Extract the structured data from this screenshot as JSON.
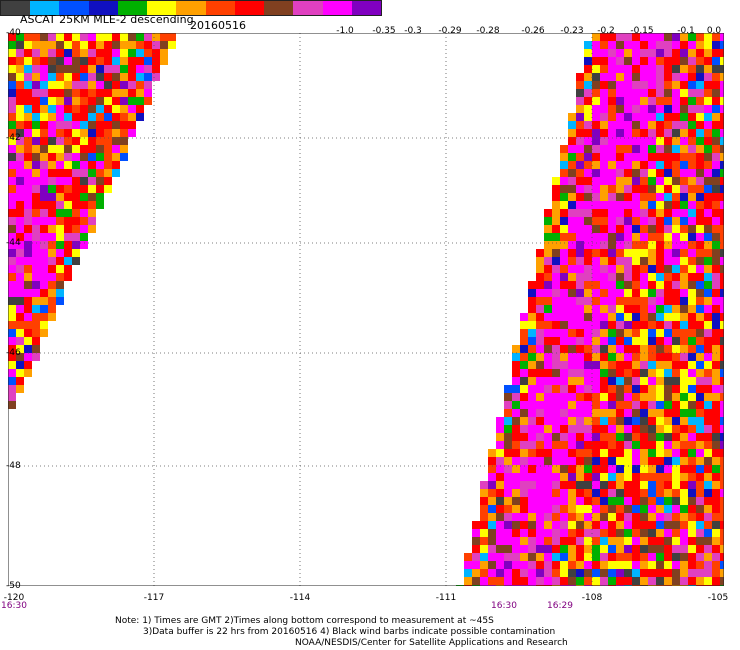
{
  "header": {
    "title": "ASCAT 25KM MLE-2 descending",
    "date": "20160516"
  },
  "legend": {
    "colors": [
      "#404040",
      "#00b4ff",
      "#0050ff",
      "#1010c0",
      "#00b000",
      "#ffff00",
      "#ffa000",
      "#ff4000",
      "#ff0000",
      "#804020",
      "#e040c0",
      "#ff00ff",
      "#8000c0"
    ],
    "labels": [
      "-1.0",
      "-0.35",
      "-0.3",
      "-0.29",
      "-0.28",
      "-0.26",
      "-0.23",
      "-0.2",
      "-0.15",
      "-0.1",
      "0.0"
    ]
  },
  "map": {
    "lat_labels": [
      "-40",
      "-42",
      "-44",
      "-46",
      "-48",
      "-50"
    ],
    "lon_labels": [
      "-120",
      "-117",
      "-114",
      "-111",
      "-108",
      "-105"
    ],
    "lon_range": [
      -120,
      -105
    ],
    "lat_range": [
      -40,
      -50
    ],
    "grid": true,
    "time_labels": [
      "16:30",
      "16:30",
      "16:29"
    ]
  },
  "notes": {
    "line1": "Note: 1) Times are GMT 2)Times along bottom correspond to measurement at ~45S",
    "line2": "3)Data buffer is 22 hrs from 20160516 4) Black wind barbs indicate possible contamination",
    "line3": "NOAA/NESDIS/Center for Satellite Applications and Research"
  }
}
